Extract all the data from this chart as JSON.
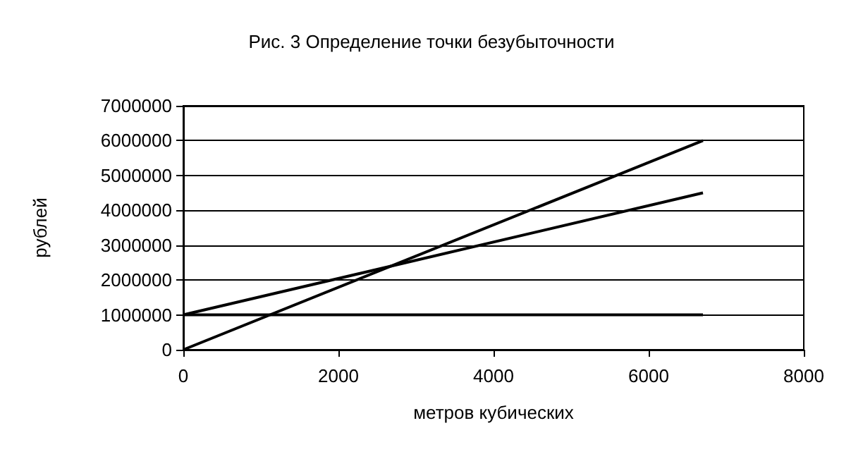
{
  "chart_data": {
    "type": "line",
    "title": "Рис. 3 Определение точки безубыточности",
    "xlabel": "метров кубических",
    "ylabel": "рублей",
    "x": [
      0,
      6700
    ],
    "series": [
      {
        "color": "#000000",
        "values": [
          0,
          6000000
        ]
      },
      {
        "color": "#000000",
        "values": [
          1000000,
          4500000
        ]
      },
      {
        "color": "#000000",
        "values": [
          1000000,
          1000000
        ]
      }
    ],
    "xlim": [
      0,
      8000
    ],
    "xticks": [
      0,
      2000,
      4000,
      6000,
      8000
    ],
    "ylim": [
      0,
      7000000
    ],
    "yticks": [
      0,
      1000000,
      2000000,
      3000000,
      4000000,
      5000000,
      6000000,
      7000000
    ],
    "grid": "y",
    "marker": "none",
    "line_style": "solid"
  }
}
